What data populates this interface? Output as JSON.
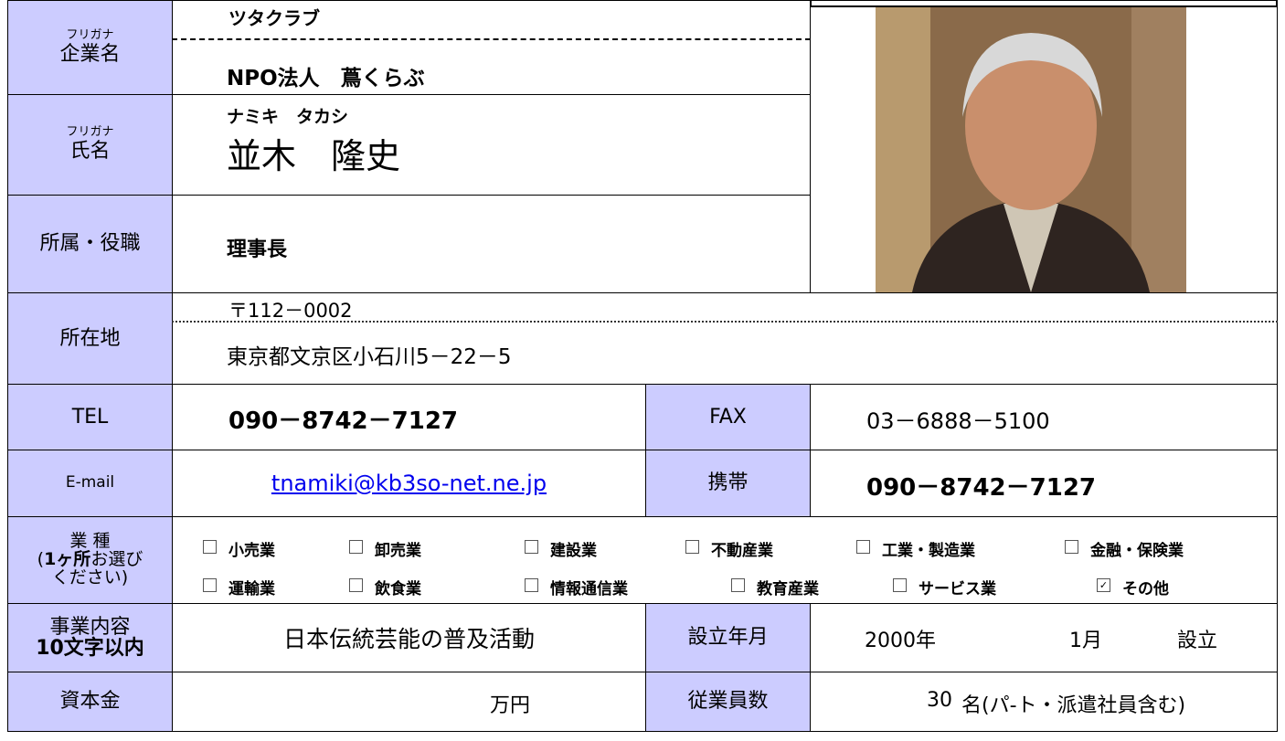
{
  "company": {
    "furigana_label": "フリガナ",
    "label": "企業名",
    "furigana": "ツタクラブ",
    "name": "NPO法人　蔦くらぶ"
  },
  "person": {
    "furigana_label": "フリガナ",
    "label": "氏名",
    "furigana": "ナミキ　タカシ",
    "name": "並木　隆史"
  },
  "position": {
    "label": "所属・役職",
    "value": "理事長"
  },
  "address": {
    "label": "所在地",
    "zip": "〒112－0002",
    "value": "東京都文京区小石川5－22－5"
  },
  "tel": {
    "label": "TEL",
    "value": "090－8742－7127"
  },
  "fax": {
    "label": "FAX",
    "value": "03－6888－5100"
  },
  "email": {
    "label": "E-mail",
    "value": "tnamiki@kb3so-net.ne.jp"
  },
  "mobile": {
    "label": "携帯",
    "value": "090－8742－7127"
  },
  "industry": {
    "label": "業 種",
    "note": [
      "(",
      "1ヶ所",
      "お選び",
      "ください)"
    ],
    "options": [
      {
        "label": "小売業",
        "checked": false
      },
      {
        "label": "卸売業",
        "checked": false
      },
      {
        "label": "建設業",
        "checked": false
      },
      {
        "label": "不動産業",
        "checked": false
      },
      {
        "label": "工業・製造業",
        "checked": false
      },
      {
        "label": "金融・保険業",
        "checked": false
      },
      {
        "label": "運輸業",
        "checked": false
      },
      {
        "label": "飲食業",
        "checked": false
      },
      {
        "label": "情報通信業",
        "checked": false
      },
      {
        "label": "教育産業",
        "checked": false
      },
      {
        "label": "サービス業",
        "checked": false
      },
      {
        "label": "その他",
        "checked": true
      }
    ]
  },
  "business": {
    "label": "事業内容",
    "note": "10文字以内",
    "value": "日本伝統芸能の普及活動"
  },
  "founded": {
    "label": "設立年月",
    "year": "2000年",
    "month": "1月",
    "suffix": "設立"
  },
  "capital": {
    "label": "資本金",
    "unit": "万円"
  },
  "employees": {
    "label": "従業員数",
    "value": "30",
    "unit": "名(パ-ト・派遣社員含む)"
  }
}
